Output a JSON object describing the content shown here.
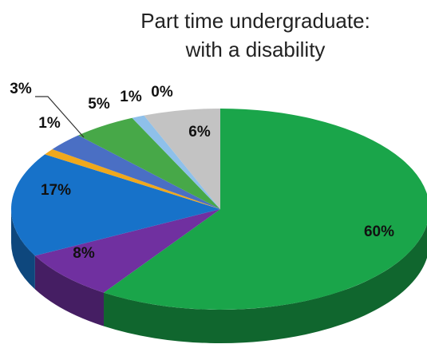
{
  "chart_data": {
    "type": "pie",
    "style": "3d",
    "title_lines": [
      "Part time undergraduate:",
      "with a disability"
    ],
    "start_angle_deg": 0,
    "direction": "clockwise",
    "slices": [
      {
        "value": 60,
        "label": "60%",
        "color": "#1aa54a"
      },
      {
        "value": 8,
        "label": "8%",
        "color": "#7030a0"
      },
      {
        "value": 17,
        "label": "17%",
        "color": "#1772c9"
      },
      {
        "value": 1,
        "label": "1%",
        "color": "#f0a81c"
      },
      {
        "value": 3,
        "label": "3%",
        "color": "#4a6fc4"
      },
      {
        "value": 5,
        "label": "5%",
        "color": "#47a848"
      },
      {
        "value": 1,
        "label": "1%",
        "color": "#8ec0ea"
      },
      {
        "value": 0,
        "label": "0%",
        "color": "#9ec8e0"
      },
      {
        "value": 6,
        "label": "6%",
        "color": "#c3c3c3"
      }
    ],
    "legend": "none"
  }
}
